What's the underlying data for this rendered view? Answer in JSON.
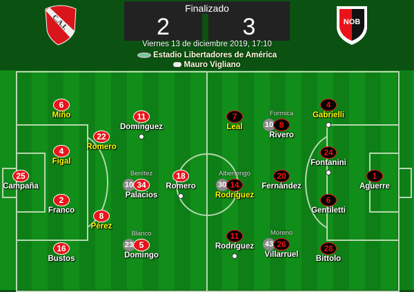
{
  "match": {
    "status": "Finalizado",
    "home_score": "2",
    "away_score": "3",
    "date": "Viernes 13 de diciembre 2019, 17:10",
    "stadium": "Estadio Libertadores de América",
    "referee": "Mauro Vigliano",
    "home_crest": "C.A.I.",
    "away_crest": "NOB",
    "stadium_icon": "stadium-icon",
    "referee_icon": "whistle-icon"
  },
  "colors": {
    "home": "#e8141b",
    "away": "#000000",
    "highlight": "#ffff00",
    "pitch": "#118d1a"
  },
  "home_players": [
    {
      "number": "6",
      "name": "Miño",
      "highlight": true
    },
    {
      "number": "4",
      "name": "Figal",
      "highlight": true
    },
    {
      "number": "25",
      "name": "Campaña"
    },
    {
      "number": "2",
      "name": "Franco"
    },
    {
      "number": "16",
      "name": "Bustos"
    },
    {
      "number": "22",
      "name": "Romero",
      "highlight": true
    },
    {
      "number": "8",
      "name": "Pérez",
      "highlight": true
    },
    {
      "number": "11",
      "name": "Domínguez",
      "goal": true
    },
    {
      "number": "34",
      "name": "Palacios",
      "sub_number": "10",
      "sub_name": "Benítez"
    },
    {
      "number": "5",
      "name": "Domingo",
      "sub_number": "23",
      "sub_name": "Blanco"
    },
    {
      "number": "18",
      "name": "Romero",
      "goal": true
    }
  ],
  "away_players": [
    {
      "number": "7",
      "name": "Leal",
      "highlight": true
    },
    {
      "number": "8",
      "name": "Rivero",
      "sub_number": "10",
      "sub_name": "Formica"
    },
    {
      "number": "4",
      "name": "Gabrielli",
      "highlight": true,
      "goal": true
    },
    {
      "number": "24",
      "name": "Fontanini",
      "goal": true
    },
    {
      "number": "1",
      "name": "Aguerre"
    },
    {
      "number": "6",
      "name": "Gentiletti"
    },
    {
      "number": "28",
      "name": "Bittolo"
    },
    {
      "number": "20",
      "name": "Fernández"
    },
    {
      "number": "14",
      "name": "Rodríguez",
      "highlight": true,
      "sub_number": "30",
      "sub_name": "Albertengo"
    },
    {
      "number": "11",
      "name": "Rodríguez",
      "goal": true
    },
    {
      "number": "26",
      "name": "Villarruel",
      "sub_number": "43",
      "sub_name": "Moreno"
    }
  ]
}
